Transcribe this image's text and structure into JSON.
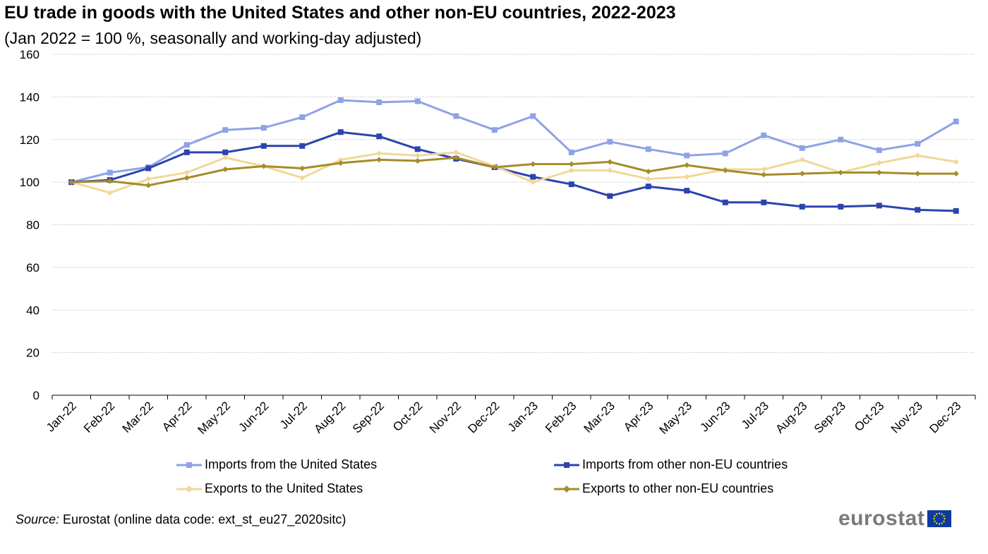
{
  "title": "EU trade in goods with the United States and other non-EU countries, 2022-2023",
  "subtitle": "(Jan 2022 = 100 %, seasonally and working-day adjusted)",
  "source_label": "Source:",
  "source_text": " Eurostat (online data code: ext_st_eu27_2020sitc)",
  "logo_text": "eurostat",
  "chart_data": {
    "type": "line",
    "categories": [
      "Jan-22",
      "Feb-22",
      "Mar-22",
      "Apr-22",
      "May-22",
      "Jun-22",
      "Jul-22",
      "Aug-22",
      "Sep-22",
      "Oct-22",
      "Nov-22",
      "Dec-22",
      "Jan-23",
      "Feb-23",
      "Mar-23",
      "Apr-23",
      "May-23",
      "Jun-23",
      "Jul-23",
      "Aug-23",
      "Sep-23",
      "Oct-23",
      "Nov-23",
      "Dec-23"
    ],
    "ylim": [
      0,
      160
    ],
    "yticks": [
      0,
      20,
      40,
      60,
      80,
      100,
      120,
      140,
      160
    ],
    "grid": true,
    "legend_position": "bottom",
    "series": [
      {
        "name": "Imports from the United States",
        "color": "#8ea2e6",
        "marker": "square",
        "values": [
          100,
          104.5,
          107,
          117.5,
          124.5,
          125.5,
          130.5,
          138.5,
          137.5,
          138,
          131,
          124.5,
          131,
          114,
          119,
          115.5,
          112.5,
          113.5,
          122,
          116,
          120,
          115,
          118,
          128.5
        ]
      },
      {
        "name": "Imports from other non-EU countries",
        "color": "#2b44ae",
        "marker": "square",
        "values": [
          100,
          101,
          106.5,
          114,
          114,
          117,
          117,
          123.5,
          121.5,
          115.5,
          111,
          107,
          102.5,
          99,
          93.5,
          98,
          96,
          90.5,
          90.5,
          88.5,
          88.5,
          89,
          87,
          86.5
        ]
      },
      {
        "name": "Exports to the United States",
        "color": "#f0d898",
        "marker": "diamond",
        "values": [
          100,
          95,
          101.5,
          104.5,
          111.5,
          107.5,
          102,
          110.5,
          113.5,
          112.5,
          114,
          107.5,
          100,
          105.5,
          105.5,
          101.5,
          102.5,
          106,
          106,
          110.5,
          104.5,
          109,
          112.5,
          109.5
        ]
      },
      {
        "name": "Exports to other non-EU countries",
        "color": "#a58c2a",
        "marker": "diamond",
        "values": [
          100,
          100.5,
          98.5,
          102,
          106,
          107.5,
          106.5,
          109,
          110.5,
          110,
          111.5,
          107,
          108.5,
          108.5,
          109.5,
          105,
          108,
          105.5,
          103.5,
          104,
          104.5,
          104.5,
          104,
          104
        ]
      }
    ]
  }
}
